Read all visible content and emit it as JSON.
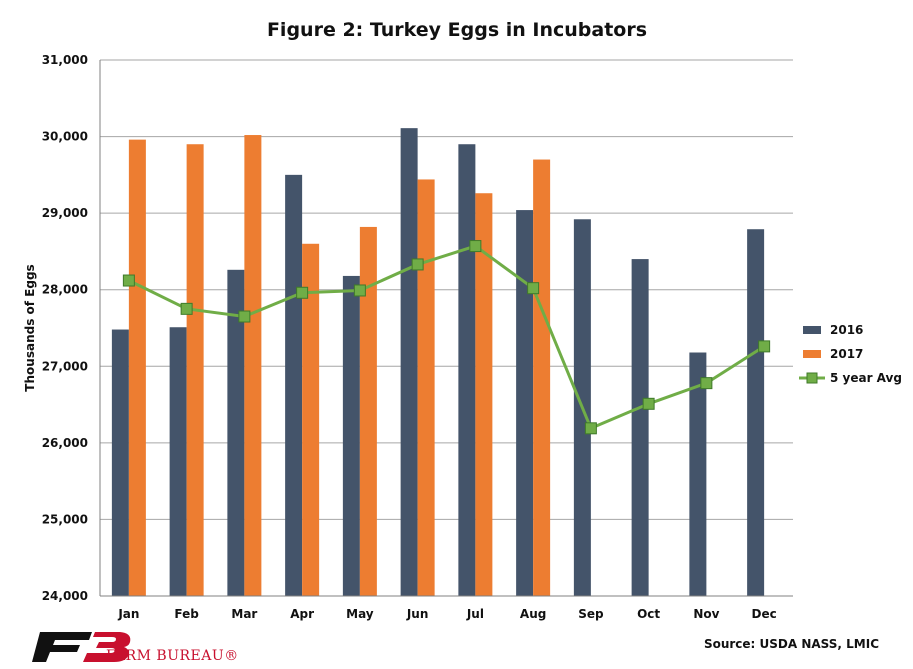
{
  "chart_data": {
    "type": "bar",
    "title": "Figure 2: Turkey Eggs in Incubators",
    "ylabel": "Thousands of Eggs",
    "xlabel": "",
    "ylim": [
      24000,
      31000
    ],
    "yticks": [
      24000,
      25000,
      26000,
      27000,
      28000,
      29000,
      30000,
      31000
    ],
    "ytick_labels": [
      "24,000",
      "25,000",
      "26,000",
      "27,000",
      "28,000",
      "29,000",
      "30,000",
      "31,000"
    ],
    "grid": true,
    "legend_position": "right",
    "categories": [
      "Jan",
      "Feb",
      "Mar",
      "Apr",
      "May",
      "Jun",
      "Jul",
      "Aug",
      "Sep",
      "Oct",
      "Nov",
      "Dec"
    ],
    "series": [
      {
        "name": "2016",
        "type": "bar",
        "color": "#44546a",
        "values": [
          27480,
          27510,
          28260,
          29500,
          28180,
          30110,
          29900,
          29040,
          28920,
          28400,
          27180,
          28790
        ]
      },
      {
        "name": "2017",
        "type": "bar",
        "color": "#ed7d31",
        "values": [
          29960,
          29900,
          30020,
          28600,
          28820,
          29440,
          29260,
          29700,
          null,
          null,
          null,
          null
        ]
      },
      {
        "name": "5 year Avg",
        "type": "line",
        "color": "#70ad47",
        "marker_color": "#70ad47",
        "values": [
          28120,
          27750,
          27650,
          27960,
          27990,
          28330,
          28570,
          28020,
          26190,
          26510,
          26780,
          27260
        ]
      }
    ]
  },
  "source": "Source: USDA NASS, LMIC",
  "brand": "FARM BUREAU®"
}
